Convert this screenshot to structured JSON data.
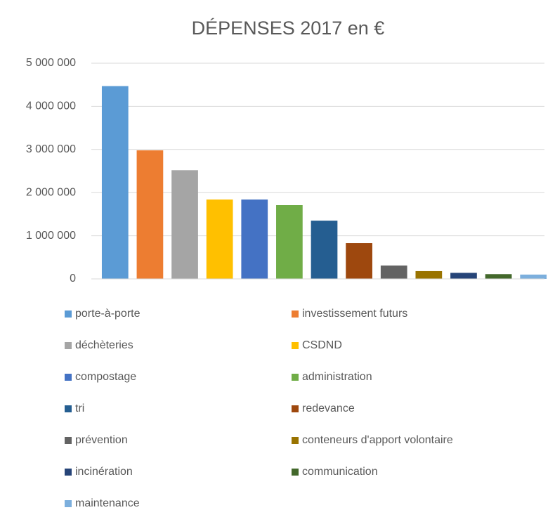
{
  "chart_data": {
    "type": "bar",
    "title": "DÉPENSES 2017 en €",
    "categories": [
      null
    ],
    "series": [
      {
        "name": "porte-à-porte",
        "color": "#5b9bd5",
        "values": [
          4470000
        ]
      },
      {
        "name": "investissement futurs",
        "color": "#ed7d31",
        "values": [
          2980000
        ]
      },
      {
        "name": "déchèteries",
        "color": "#a5a5a5",
        "values": [
          2520000
        ]
      },
      {
        "name": "CSDND",
        "color": "#ffc000",
        "values": [
          1840000
        ]
      },
      {
        "name": "compostage",
        "color": "#4472c4",
        "values": [
          1840000
        ]
      },
      {
        "name": "administration",
        "color": "#70ad47",
        "values": [
          1710000
        ]
      },
      {
        "name": "tri",
        "color": "#255e91",
        "values": [
          1350000
        ]
      },
      {
        "name": "redevance",
        "color": "#9e480e",
        "values": [
          830000
        ]
      },
      {
        "name": "prévention",
        "color": "#636363",
        "values": [
          310000
        ]
      },
      {
        "name": "conteneurs d'apport volontaire",
        "color": "#997300",
        "values": [
          180000
        ]
      },
      {
        "name": "incinération",
        "color": "#264478",
        "values": [
          140000
        ]
      },
      {
        "name": "communication",
        "color": "#43682b",
        "values": [
          110000
        ]
      },
      {
        "name": "maintenance",
        "color": "#7cafdd",
        "values": [
          100000
        ]
      }
    ],
    "ylim": [
      0,
      5000000
    ],
    "yticks": [
      0,
      {
        "value": 1000000,
        "label": "1 000 000"
      },
      {
        "value": 2000000,
        "label": "2 000 000"
      },
      {
        "value": 3000000,
        "label": "3 000 000"
      },
      {
        "value": 4000000,
        "label": "4 000 000"
      },
      {
        "value": 5000000,
        "label": "5 000 000"
      }
    ],
    "grid": true,
    "legend": "bottom"
  }
}
